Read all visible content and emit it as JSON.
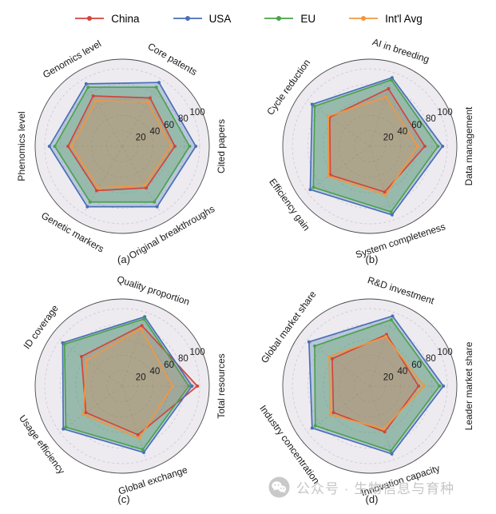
{
  "legend": {
    "items": [
      {
        "name": "China",
        "color": "#d2453c"
      },
      {
        "name": "USA",
        "color": "#4a6fb5"
      },
      {
        "name": "EU",
        "color": "#4ba349"
      },
      {
        "name": "Int'l Avg",
        "color": "#f0973f"
      }
    ]
  },
  "style": {
    "plot_bg": "#edebf0",
    "spine_color": "#4a4a4a",
    "grid_color": "#c6c3cc",
    "tick_angle_deg": 24,
    "fill_opacity": {
      "China": 0.16,
      "USA": 0.3,
      "EU": 0.32,
      "Int'l Avg": 0.16
    }
  },
  "watermark": {
    "text": "公众号 · 生物信息与育种"
  },
  "chart_data": [
    {
      "type": "radar",
      "panel_label": "(a)",
      "categories": [
        "Cited papers",
        "Core patents",
        "Genomics level",
        "Phenomics level",
        "Genetic markers",
        "Original breakthroughs"
      ],
      "rticks": [
        20,
        40,
        60,
        80,
        100
      ],
      "rlim": [
        0,
        100
      ],
      "series": [
        {
          "name": "China",
          "values": [
            68,
            72,
            75,
            70,
            66,
            62
          ]
        },
        {
          "name": "USA",
          "values": [
            95,
            95,
            93,
            94,
            90,
            90
          ]
        },
        {
          "name": "EU",
          "values": [
            87,
            88,
            88,
            87,
            83,
            83
          ]
        },
        {
          "name": "Int'l Avg",
          "values": [
            63,
            66,
            68,
            65,
            62,
            58
          ]
        }
      ]
    },
    {
      "type": "radar",
      "panel_label": "(b)",
      "categories": [
        "Data management",
        "AI in breeding",
        "Cycle reduction",
        "Efficiency gain",
        "System completeness"
      ],
      "rticks": [
        20,
        40,
        60,
        80,
        100
      ],
      "rlim": [
        0,
        100
      ],
      "series": [
        {
          "name": "China",
          "values": [
            71,
            78,
            64,
            63,
            62
          ]
        },
        {
          "name": "USA",
          "values": [
            94,
            93,
            92,
            95,
            93
          ]
        },
        {
          "name": "EU",
          "values": [
            88,
            90,
            88,
            90,
            89
          ]
        },
        {
          "name": "Int'l Avg",
          "values": [
            62,
            67,
            66,
            66,
            66
          ]
        }
      ]
    },
    {
      "type": "radar",
      "panel_label": "(c)",
      "categories": [
        "Total resources",
        "Quality proportion",
        "ID coverage",
        "Usage efficiency",
        "Global exchange"
      ],
      "rticks": [
        20,
        40,
        60,
        80,
        100
      ],
      "rlim": [
        0,
        100
      ],
      "series": [
        {
          "name": "China",
          "values": [
            97,
            82,
            65,
            58,
            66
          ]
        },
        {
          "name": "USA",
          "values": [
            90,
            94,
            95,
            94,
            90
          ]
        },
        {
          "name": "EU",
          "values": [
            86,
            91,
            92,
            90,
            86
          ]
        },
        {
          "name": "Int'l Avg",
          "values": [
            65,
            78,
            57,
            62,
            71
          ]
        }
      ]
    },
    {
      "type": "radar",
      "panel_label": "(d)",
      "categories": [
        "Leader market share",
        "R&D investment",
        "Global market share",
        "Industry concentration",
        "Innovation capacity"
      ],
      "rticks": [
        20,
        40,
        60,
        80,
        100
      ],
      "rlim": [
        0,
        100
      ],
      "series": [
        {
          "name": "China",
          "values": [
            63,
            70,
            60,
            58,
            62
          ]
        },
        {
          "name": "USA",
          "values": [
            95,
            95,
            97,
            92,
            92
          ]
        },
        {
          "name": "EU",
          "values": [
            90,
            90,
            88,
            87,
            88
          ]
        },
        {
          "name": "Int'l Avg",
          "values": [
            70,
            67,
            65,
            63,
            58
          ]
        }
      ]
    }
  ]
}
